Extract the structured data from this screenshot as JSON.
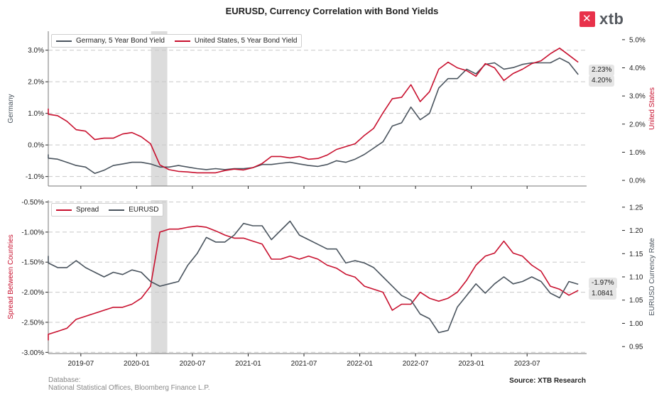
{
  "title": "EURUSD, Currency Correlation with Bond Yields",
  "logo": {
    "text": "xtb",
    "icon": "xtb-logo-icon",
    "color": "#e8314a"
  },
  "footer": {
    "database_label": "Database:",
    "database_value": "National Statistical Offices, Bloomberg Finance L.P.",
    "source": "Source: XTB Research"
  },
  "colors": {
    "red": "#c8102e",
    "gray": "#4a545e",
    "shade": "#dcdcdc",
    "grid": "#c8c8c8"
  },
  "x_ticks": [
    "2019-07",
    "2020-01",
    "2020-07",
    "2021-01",
    "2021-07",
    "2022-01",
    "2022-07",
    "2023-01",
    "2023-07"
  ],
  "shaded_period": {
    "start": "2020-02",
    "end": "2020-04"
  },
  "top_panel": {
    "left_axis_label": "Germany",
    "right_axis_label": "United States",
    "left_ticks": [
      "-1.0%",
      "0.0%",
      "1.0%",
      "2.0%",
      "3.0%"
    ],
    "right_ticks": [
      "0.0%",
      "1.0%",
      "2.0%",
      "3.0%",
      "4.0%",
      "5.0%"
    ],
    "legend": [
      "Germany, 5 Year Bond Yield",
      "United States, 5 Year Bond Yield"
    ],
    "badges": [
      "2.23%",
      "4.20%"
    ]
  },
  "bottom_panel": {
    "left_axis_label": "Spread Between Countries",
    "right_axis_label": "EURUSD Currency Rate",
    "left_ticks": [
      "-3.00%",
      "-2.50%",
      "-2.00%",
      "-1.50%",
      "-1.00%",
      "-0.50%"
    ],
    "right_ticks": [
      "0.95",
      "1.00",
      "1.05",
      "1.10",
      "1.15",
      "1.20",
      "1.25"
    ],
    "legend": [
      "Spread",
      "EURUSD"
    ],
    "badges": [
      "-1.97%",
      "1.0841"
    ]
  },
  "chart_data": [
    {
      "type": "line",
      "title": "",
      "x_dates": [
        "2019-01",
        "2019-02",
        "2019-03",
        "2019-04",
        "2019-05",
        "2019-06",
        "2019-07",
        "2019-08",
        "2019-09",
        "2019-10",
        "2019-11",
        "2019-12",
        "2020-01",
        "2020-02",
        "2020-03",
        "2020-04",
        "2020-05",
        "2020-06",
        "2020-07",
        "2020-08",
        "2020-09",
        "2020-10",
        "2020-11",
        "2020-12",
        "2021-01",
        "2021-02",
        "2021-03",
        "2021-04",
        "2021-05",
        "2021-06",
        "2021-07",
        "2021-08",
        "2021-09",
        "2021-10",
        "2021-11",
        "2021-12",
        "2022-01",
        "2022-02",
        "2022-03",
        "2022-04",
        "2022-05",
        "2022-06",
        "2022-07",
        "2022-08",
        "2022-09",
        "2022-10",
        "2022-11",
        "2022-12",
        "2023-01",
        "2023-02",
        "2023-03",
        "2023-04",
        "2023-05",
        "2023-06",
        "2023-07",
        "2023-08",
        "2023-09",
        "2023-10",
        "2023-11",
        "2023-12"
      ],
      "series": [
        {
          "name": "Germany, 5 Year Bond Yield",
          "axis": "left",
          "values": [
            -0.3,
            -0.35,
            -0.42,
            -0.45,
            -0.55,
            -0.65,
            -0.7,
            -0.9,
            -0.8,
            -0.65,
            -0.6,
            -0.55,
            -0.55,
            -0.6,
            -0.7,
            -0.7,
            -0.65,
            -0.7,
            -0.75,
            -0.78,
            -0.75,
            -0.78,
            -0.75,
            -0.75,
            -0.72,
            -0.62,
            -0.62,
            -0.58,
            -0.55,
            -0.6,
            -0.65,
            -0.68,
            -0.62,
            -0.5,
            -0.55,
            -0.45,
            -0.3,
            -0.1,
            0.1,
            0.6,
            0.7,
            1.2,
            0.8,
            1.0,
            1.8,
            2.1,
            2.1,
            2.4,
            2.25,
            2.55,
            2.6,
            2.4,
            2.45,
            2.55,
            2.6,
            2.6,
            2.6,
            2.75,
            2.6,
            2.23
          ]
        },
        {
          "name": "United States, 5 Year Bond Yield",
          "axis": "right",
          "values": [
            2.55,
            2.45,
            2.35,
            2.3,
            2.1,
            1.8,
            1.75,
            1.45,
            1.5,
            1.5,
            1.65,
            1.7,
            1.55,
            1.3,
            0.55,
            0.38,
            0.32,
            0.3,
            0.27,
            0.27,
            0.27,
            0.35,
            0.4,
            0.37,
            0.45,
            0.6,
            0.85,
            0.85,
            0.8,
            0.85,
            0.75,
            0.78,
            0.9,
            1.1,
            1.2,
            1.3,
            1.6,
            1.85,
            2.4,
            2.9,
            2.95,
            3.4,
            2.8,
            3.15,
            3.95,
            4.2,
            4.0,
            3.9,
            3.7,
            4.15,
            4.0,
            3.55,
            3.8,
            3.95,
            4.15,
            4.25,
            4.5,
            4.7,
            4.45,
            4.2
          ]
        }
      ],
      "left_ylim": [
        -1.3,
        3.6
      ],
      "right_ylim": [
        -0.2,
        5.3
      ],
      "grid": true,
      "legend_placement": "top-left"
    },
    {
      "type": "line",
      "title": "",
      "x_dates": [
        "2019-01",
        "2019-02",
        "2019-03",
        "2019-04",
        "2019-05",
        "2019-06",
        "2019-07",
        "2019-08",
        "2019-09",
        "2019-10",
        "2019-11",
        "2019-12",
        "2020-01",
        "2020-02",
        "2020-03",
        "2020-04",
        "2020-05",
        "2020-06",
        "2020-07",
        "2020-08",
        "2020-09",
        "2020-10",
        "2020-11",
        "2020-12",
        "2021-01",
        "2021-02",
        "2021-03",
        "2021-04",
        "2021-05",
        "2021-06",
        "2021-07",
        "2021-08",
        "2021-09",
        "2021-10",
        "2021-11",
        "2021-12",
        "2022-01",
        "2022-02",
        "2022-03",
        "2022-04",
        "2022-05",
        "2022-06",
        "2022-07",
        "2022-08",
        "2022-09",
        "2022-10",
        "2022-11",
        "2022-12",
        "2023-01",
        "2023-02",
        "2023-03",
        "2023-04",
        "2023-05",
        "2023-06",
        "2023-07",
        "2023-08",
        "2023-09",
        "2023-10",
        "2023-11",
        "2023-12"
      ],
      "series": [
        {
          "name": "Spread",
          "axis": "left",
          "values": [
            -2.8,
            -2.75,
            -2.7,
            -2.65,
            -2.6,
            -2.45,
            -2.4,
            -2.35,
            -2.3,
            -2.25,
            -2.25,
            -2.2,
            -2.1,
            -1.9,
            -1.0,
            -0.95,
            -0.95,
            -0.92,
            -0.9,
            -0.92,
            -0.98,
            -1.05,
            -1.1,
            -1.1,
            -1.15,
            -1.2,
            -1.45,
            -1.45,
            -1.4,
            -1.45,
            -1.4,
            -1.45,
            -1.55,
            -1.6,
            -1.7,
            -1.75,
            -1.9,
            -1.95,
            -2.0,
            -2.3,
            -2.2,
            -2.2,
            -2.0,
            -2.1,
            -2.15,
            -2.1,
            -2.0,
            -1.8,
            -1.55,
            -1.4,
            -1.35,
            -1.15,
            -1.35,
            -1.4,
            -1.55,
            -1.65,
            -1.9,
            -1.95,
            -2.05,
            -1.97
          ]
        },
        {
          "name": "EURUSD",
          "axis": "right",
          "values": [
            1.145,
            1.135,
            1.13,
            1.12,
            1.12,
            1.135,
            1.12,
            1.11,
            1.1,
            1.11,
            1.105,
            1.115,
            1.11,
            1.09,
            1.08,
            1.085,
            1.09,
            1.125,
            1.15,
            1.185,
            1.175,
            1.175,
            1.19,
            1.215,
            1.21,
            1.21,
            1.18,
            1.2,
            1.22,
            1.19,
            1.18,
            1.17,
            1.16,
            1.16,
            1.13,
            1.135,
            1.13,
            1.12,
            1.1,
            1.08,
            1.06,
            1.05,
            1.02,
            1.01,
            0.98,
            0.985,
            1.035,
            1.06,
            1.085,
            1.065,
            1.085,
            1.1,
            1.085,
            1.09,
            1.1,
            1.09,
            1.065,
            1.055,
            1.09,
            1.0841
          ]
        }
      ],
      "left_ylim": [
        -3.02,
        -0.47
      ],
      "right_ylim": [
        0.935,
        1.265
      ],
      "grid": true,
      "legend_placement": "top-left"
    }
  ]
}
